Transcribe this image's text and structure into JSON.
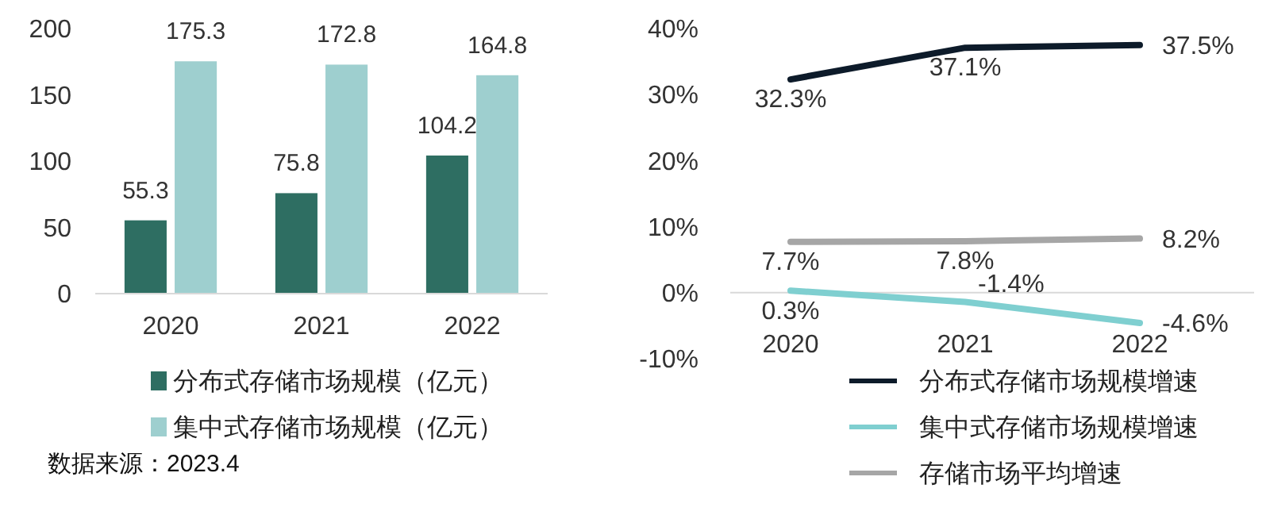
{
  "chart_data": [
    {
      "type": "bar",
      "categories": [
        "2020",
        "2021",
        "2022"
      ],
      "series": [
        {
          "name": "分布式存储市场规模（亿元）",
          "color": "#2e6e62",
          "values": [
            55.3,
            75.8,
            104.2
          ]
        },
        {
          "name": "集中式存储市场规模（亿元）",
          "color": "#9ecfcf",
          "values": [
            175.3,
            172.8,
            164.8
          ]
        }
      ],
      "ylim": [
        0,
        200
      ],
      "yticks": [
        0,
        50,
        100,
        150,
        200
      ],
      "data_labels": true,
      "grid": false,
      "legend": "bottom",
      "annotations": [
        "数据来源：2023.4"
      ]
    },
    {
      "type": "line",
      "categories": [
        "2020",
        "2021",
        "2022"
      ],
      "series": [
        {
          "name": "分布式存储市场规模增速",
          "color": "#0d1b2a",
          "values": [
            32.3,
            37.1,
            37.5
          ],
          "value_labels": [
            "32.3%",
            "37.1%",
            "37.5%"
          ]
        },
        {
          "name": "集中式存储市场规模增速",
          "color": "#7fcfd0",
          "values": [
            0.3,
            -1.4,
            -4.6
          ],
          "value_labels": [
            "0.3%",
            "-1.4%",
            "-4.6%"
          ]
        },
        {
          "name": "存储市场平均增速",
          "color": "#a6a6a6",
          "values": [
            7.7,
            7.8,
            8.2
          ],
          "value_labels": [
            "7.7%",
            "7.8%",
            "8.2%"
          ]
        }
      ],
      "ylim": [
        -10,
        40
      ],
      "yticks": [
        {
          "value": -10,
          "label": "-10%"
        },
        {
          "value": 0,
          "label": "0%"
        },
        {
          "value": 10,
          "label": "10%"
        },
        {
          "value": 20,
          "label": "20%"
        },
        {
          "value": 30,
          "label": "30%"
        },
        {
          "value": 40,
          "label": "40%"
        }
      ],
      "grid": false,
      "legend": "bottom",
      "marker": "none",
      "line_style": "solid"
    }
  ]
}
